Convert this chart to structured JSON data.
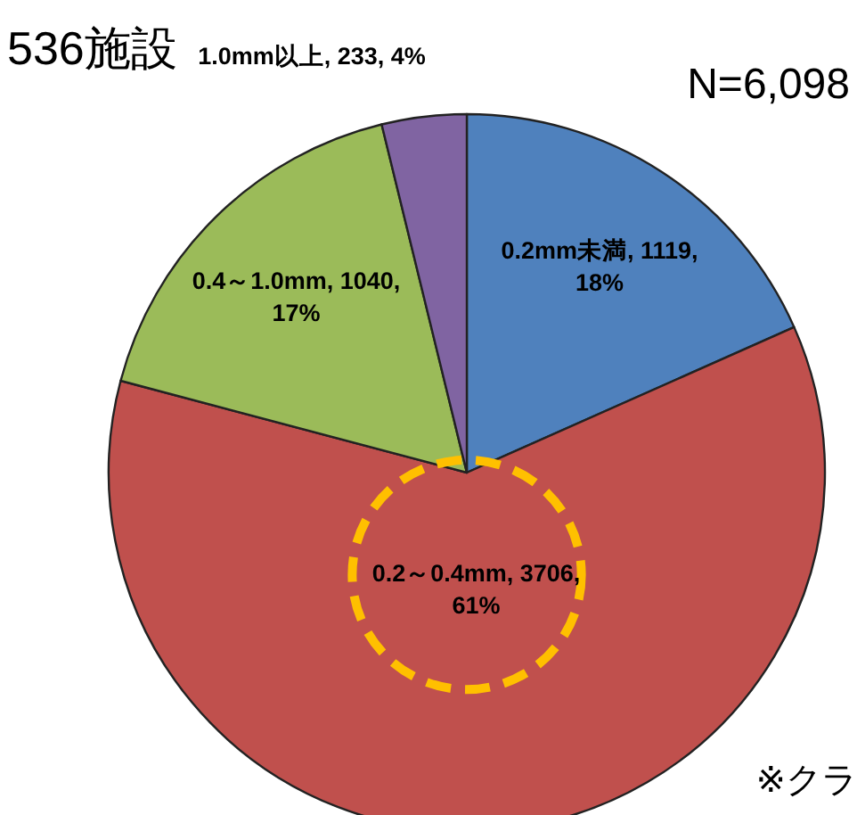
{
  "chart_data": {
    "type": "pie",
    "title": "536施設",
    "categories": [
      "0.2mm未満",
      "0.2～0.4mm",
      "0.4～1.0mm",
      "1.0mm以上"
    ],
    "values": [
      1119,
      3706,
      1040,
      233
    ],
    "value_labels": [
      "1119, 18%",
      "3706, 61%",
      "1040, 17%",
      "233, 4%"
    ],
    "colors": [
      "#4f81bd",
      "#c0504d",
      "#9bbb59",
      "#8064a2"
    ],
    "data_labels": true,
    "annotations": [
      "N=6,098",
      "※クラ"
    ]
  }
}
